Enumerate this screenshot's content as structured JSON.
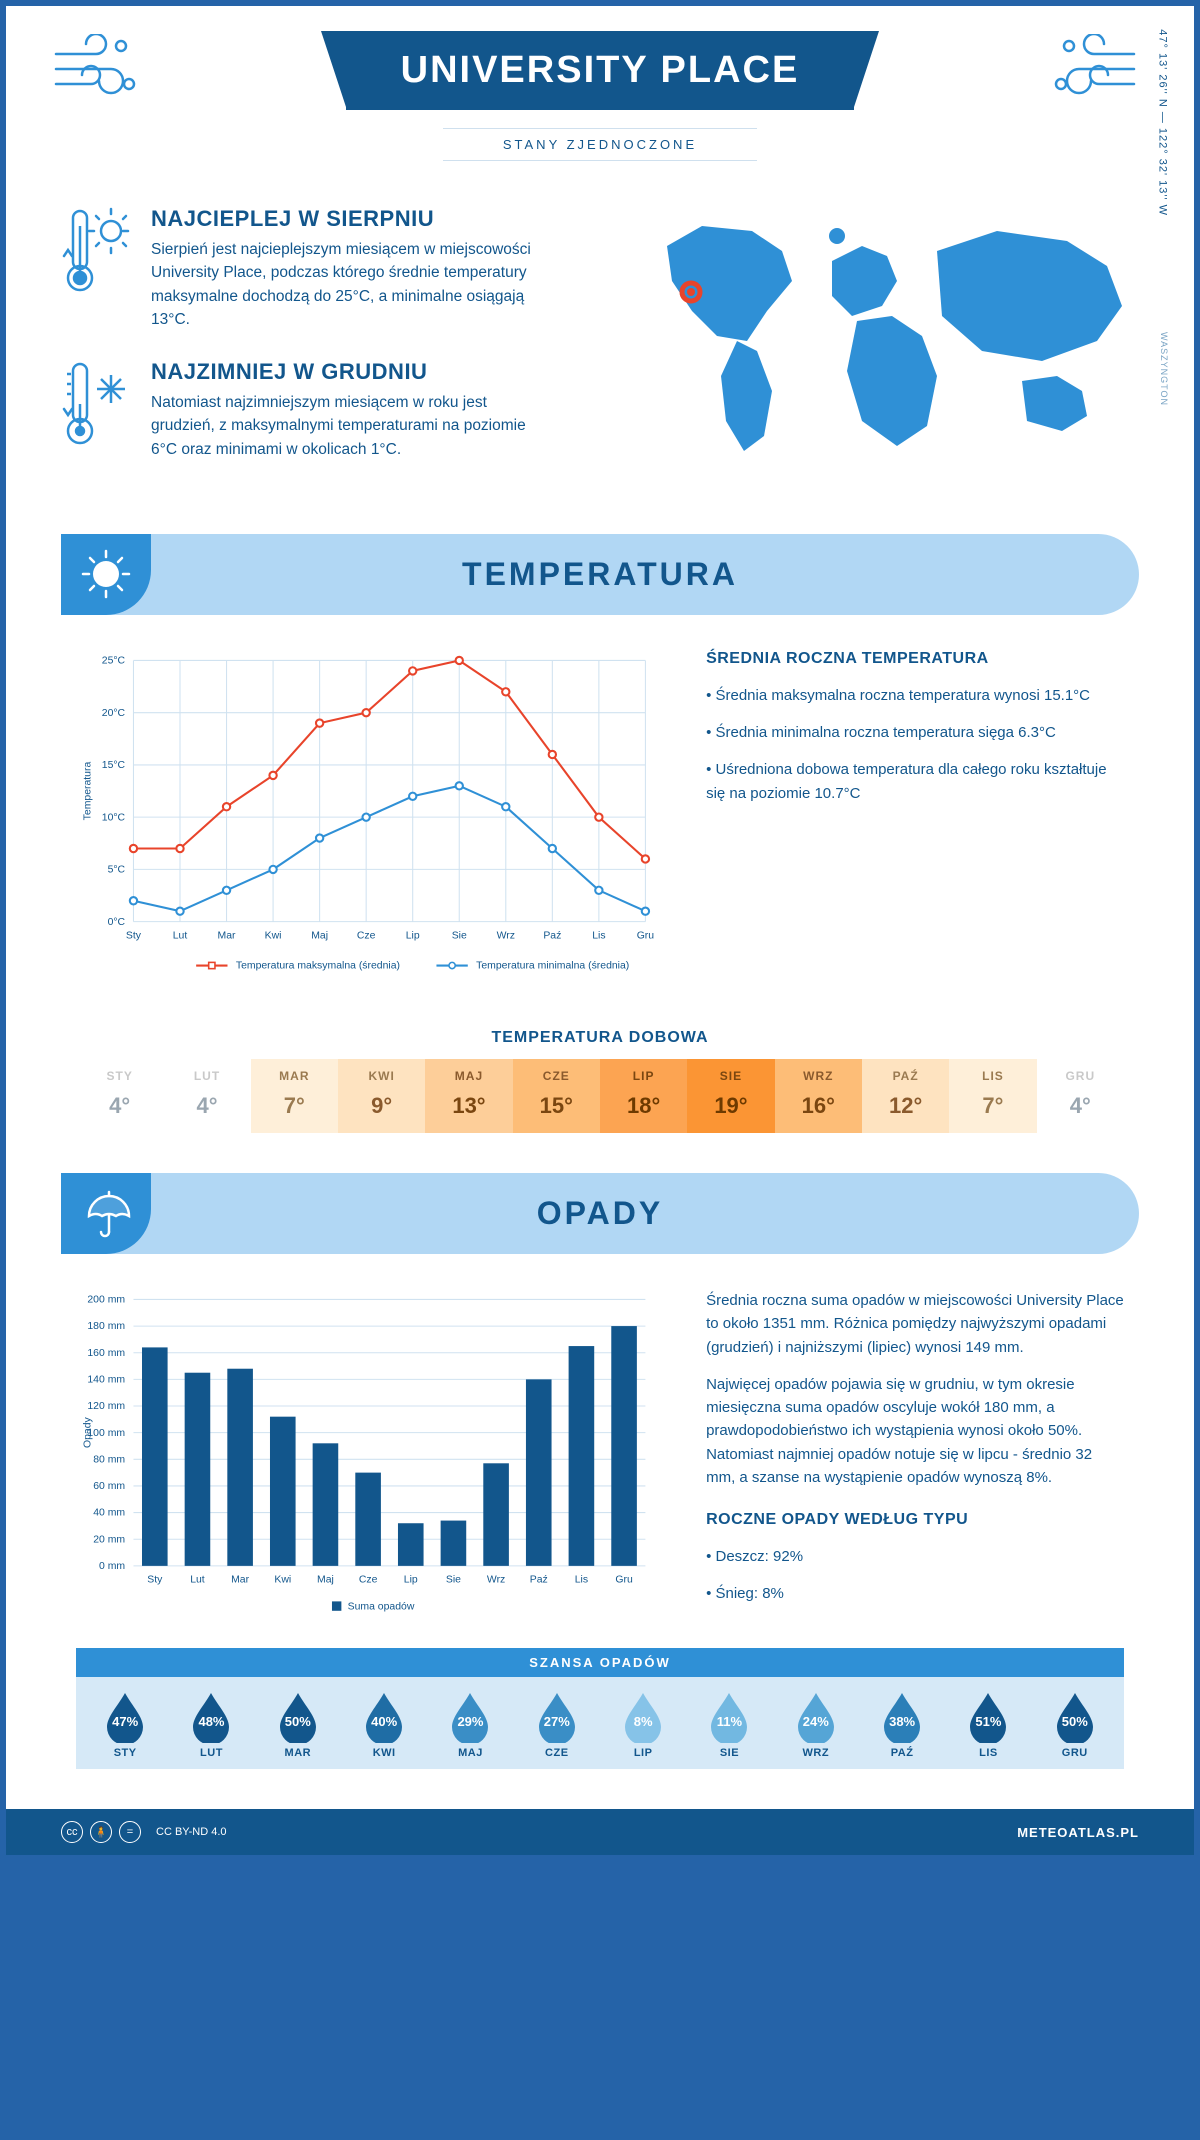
{
  "header": {
    "title": "UNIVERSITY PLACE",
    "country": "STANY ZJEDNOCZONE"
  },
  "coords": {
    "lat": "47° 13' 26'' N",
    "lon": "122° 32' 13'' W",
    "state": "WASZYNGTON"
  },
  "facts": {
    "hot": {
      "title": "NAJCIEPLEJ W SIERPNIU",
      "body": "Sierpień jest najcieplejszym miesiącem w miejscowości University Place, podczas którego średnie temperatury maksymalne dochodzą do 25°C, a minimalne osiągają 13°C."
    },
    "cold": {
      "title": "NAJZIMNIEJ W GRUDNIU",
      "body": "Natomiast najzimniejszym miesiącem w roku jest grudzień, z maksymalnymi temperaturami na poziomie 6°C oraz minimami w okolicach 1°C."
    }
  },
  "temp_section": {
    "banner": "TEMPERATURA",
    "side_title": "ŚREDNIA ROCZNA TEMPERATURA",
    "side_points": [
      "• Średnia maksymalna roczna temperatura wynosi 15.1°C",
      "• Średnia minimalna roczna temperatura sięga 6.3°C",
      "• Uśredniona dobowa temperatura dla całego roku kształtuje się na poziomie 10.7°C"
    ],
    "chart": {
      "type": "line",
      "ylabel": "Temperatura",
      "months": [
        "Sty",
        "Lut",
        "Mar",
        "Kwi",
        "Maj",
        "Cze",
        "Lip",
        "Sie",
        "Wrz",
        "Paź",
        "Lis",
        "Gru"
      ],
      "max": [
        7,
        7,
        11,
        14,
        19,
        20,
        24,
        25,
        22,
        16,
        10,
        6
      ],
      "min": [
        2,
        1,
        3,
        5,
        8,
        10,
        12,
        13,
        11,
        7,
        3,
        1
      ],
      "ylim": [
        0,
        25
      ],
      "ytick_step": 5,
      "max_color": "#e8442b",
      "min_color": "#2f90d6",
      "grid_color": "#d0e2f0",
      "legend_max": "Temperatura maksymalna (średnia)",
      "legend_min": "Temperatura minimalna (średnia)"
    },
    "daily_title": "TEMPERATURA DOBOWA",
    "daily": {
      "months": [
        "STY",
        "LUT",
        "MAR",
        "KWI",
        "MAJ",
        "CZE",
        "LIP",
        "SIE",
        "WRZ",
        "PAŹ",
        "LIS",
        "GRU"
      ],
      "values": [
        "4°",
        "4°",
        "7°",
        "9°",
        "13°",
        "15°",
        "18°",
        "19°",
        "16°",
        "12°",
        "7°",
        "4°"
      ],
      "bg": [
        "#fff",
        "#fff",
        "#feefd9",
        "#fee3c0",
        "#fdce99",
        "#fdbd77",
        "#fca452",
        "#fb9534",
        "#fdbd77",
        "#fee3c0",
        "#feefd9",
        "#fff"
      ],
      "label_color": [
        "#c9c9c9",
        "#c9c9c9",
        "#9a7a50",
        "#9a7a50",
        "#8a5a2d",
        "#8a5a2d",
        "#7a4610",
        "#7a4610",
        "#8a5a2d",
        "#9a7a50",
        "#9a7a50",
        "#c9c9c9"
      ],
      "val_color": [
        "#9aa6b0",
        "#9aa6b0",
        "#9a7a50",
        "#8a5a2d",
        "#7a4610",
        "#7a4610",
        "#6d3a00",
        "#6d3a00",
        "#7a4610",
        "#8a5a2d",
        "#9a7a50",
        "#9aa6b0"
      ]
    }
  },
  "precip_section": {
    "banner": "OPADY",
    "side_p1": "Średnia roczna suma opadów w miejscowości University Place to około 1351 mm. Różnica pomiędzy najwyższymi opadami (grudzień) i najniższymi (lipiec) wynosi 149 mm.",
    "side_p2": "Najwięcej opadów pojawia się w grudniu, w tym okresie miesięczna suma opadów oscyluje wokół 180 mm, a prawdopodobieństwo ich wystąpienia wynosi około 50%. Natomiast najmniej opadów notuje się w lipcu - średnio 32 mm, a szanse na wystąpienie opadów wynoszą 8%.",
    "by_type_title": "ROCZNE OPADY WEDŁUG TYPU",
    "by_type": [
      "• Deszcz: 92%",
      "• Śnieg: 8%"
    ],
    "chart": {
      "type": "bar",
      "ylabel": "Opady",
      "months": [
        "Sty",
        "Lut",
        "Mar",
        "Kwi",
        "Maj",
        "Cze",
        "Lip",
        "Sie",
        "Wrz",
        "Paź",
        "Lis",
        "Gru"
      ],
      "values": [
        164,
        145,
        148,
        112,
        92,
        70,
        32,
        34,
        77,
        140,
        165,
        180
      ],
      "ylim": [
        0,
        200
      ],
      "ytick_step": 20,
      "bar_color": "#12568c",
      "grid_color": "#d0e2f0",
      "legend": "Suma opadów"
    },
    "chance": {
      "title": "SZANSA OPADÓW",
      "months": [
        "STY",
        "LUT",
        "MAR",
        "KWI",
        "MAJ",
        "CZE",
        "LIP",
        "SIE",
        "WRZ",
        "PAŹ",
        "LIS",
        "GRU"
      ],
      "pct": [
        "47%",
        "48%",
        "50%",
        "40%",
        "29%",
        "27%",
        "8%",
        "11%",
        "24%",
        "38%",
        "51%",
        "50%"
      ],
      "colors": [
        "#12568c",
        "#12568c",
        "#12568c",
        "#1f6da5",
        "#3a8ec6",
        "#3a8ec6",
        "#86c3e8",
        "#72b8e1",
        "#55a5d6",
        "#2b7fb8",
        "#12568c",
        "#12568c"
      ]
    }
  },
  "footer": {
    "license": "CC BY-ND 4.0",
    "site": "METEOATLAS.PL"
  }
}
